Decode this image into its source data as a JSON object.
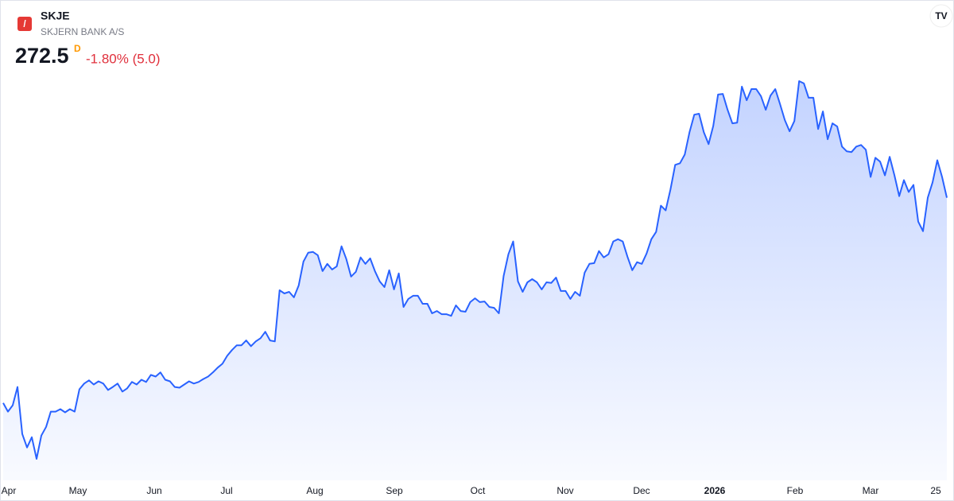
{
  "chart_data": {
    "type": "area",
    "title": "SKJE",
    "subtitle": "SKJERN BANK A/S",
    "price": 272.5,
    "interval": "D",
    "change": "-1.80% (5.0)",
    "color": "#2962ff",
    "values": [
      182.5,
      178.7,
      181.5,
      189.5,
      168.9,
      163,
      167.5,
      158,
      168.2,
      172,
      178.7,
      178.7,
      179.8,
      178.4,
      179.8,
      178.7,
      188.5,
      191,
      192.4,
      190.6,
      192,
      191,
      188.2,
      189.5,
      191,
      187.5,
      188.9,
      191.7,
      190.6,
      192.7,
      191.7,
      194.8,
      194.1,
      195.9,
      192.7,
      192,
      189.5,
      189.2,
      190.6,
      192,
      191,
      191.7,
      193,
      194.1,
      195.9,
      198,
      199.7,
      203.2,
      205.7,
      207.8,
      207.8,
      209.9,
      207.4,
      209.5,
      210.9,
      213.7,
      209.9,
      209.5,
      231.9,
      230.5,
      231.2,
      228.8,
      234,
      244.5,
      248.4,
      248.7,
      247.3,
      240.3,
      243.5,
      241,
      242.4,
      251.2,
      245.6,
      237.9,
      240,
      246.3,
      243.5,
      245.9,
      240.3,
      235.8,
      233.3,
      240.7,
      232.3,
      239.3,
      224.6,
      228.1,
      229.5,
      229.5,
      226,
      226,
      221.8,
      222.8,
      221.4,
      221.4,
      220.7,
      225.3,
      222.8,
      222.5,
      226.7,
      228.4,
      226.7,
      227,
      224.6,
      224.2,
      221.8,
      238.2,
      247.7,
      253.3,
      235.8,
      231.2,
      235.4,
      236.8,
      235.4,
      232.3,
      235.4,
      235.1,
      237.5,
      231.6,
      231.6,
      228.1,
      231.2,
      229.5,
      239.6,
      243.5,
      243.8,
      249.1,
      246.3,
      247.7,
      253.3,
      254.3,
      253.3,
      246.6,
      240.7,
      244.2,
      243.5,
      248,
      254.3,
      257.5,
      269,
      266.9,
      276,
      286.9,
      287.6,
      291.4,
      301.2,
      308.9,
      309.3,
      301.2,
      296,
      304,
      317.7,
      318,
      311,
      305.1,
      305.4,
      321.2,
      315.2,
      320.1,
      320.1,
      317,
      311,
      317.3,
      320.1,
      313.5,
      306.5,
      301.6,
      306.1,
      323.6,
      322.6,
      316.3,
      316.3,
      302.6,
      310.3,
      298.1,
      305.1,
      303.7,
      294.9,
      292.8,
      292.5,
      294.9,
      295.6,
      293.5,
      281.6,
      290,
      288.3,
      282.3,
      290.4,
      282.3,
      273.2,
      280.2,
      275,
      278.1,
      262,
      257.8,
      272.5,
      279.2,
      288.9,
      281.6,
      272.5
    ],
    "x_labels": [
      "Apr",
      "May",
      "Jun",
      "Jul",
      "Aug",
      "Sep",
      "Oct",
      "Nov",
      "Dec",
      "2026",
      "Feb",
      "Mar",
      "25"
    ]
  }
}
